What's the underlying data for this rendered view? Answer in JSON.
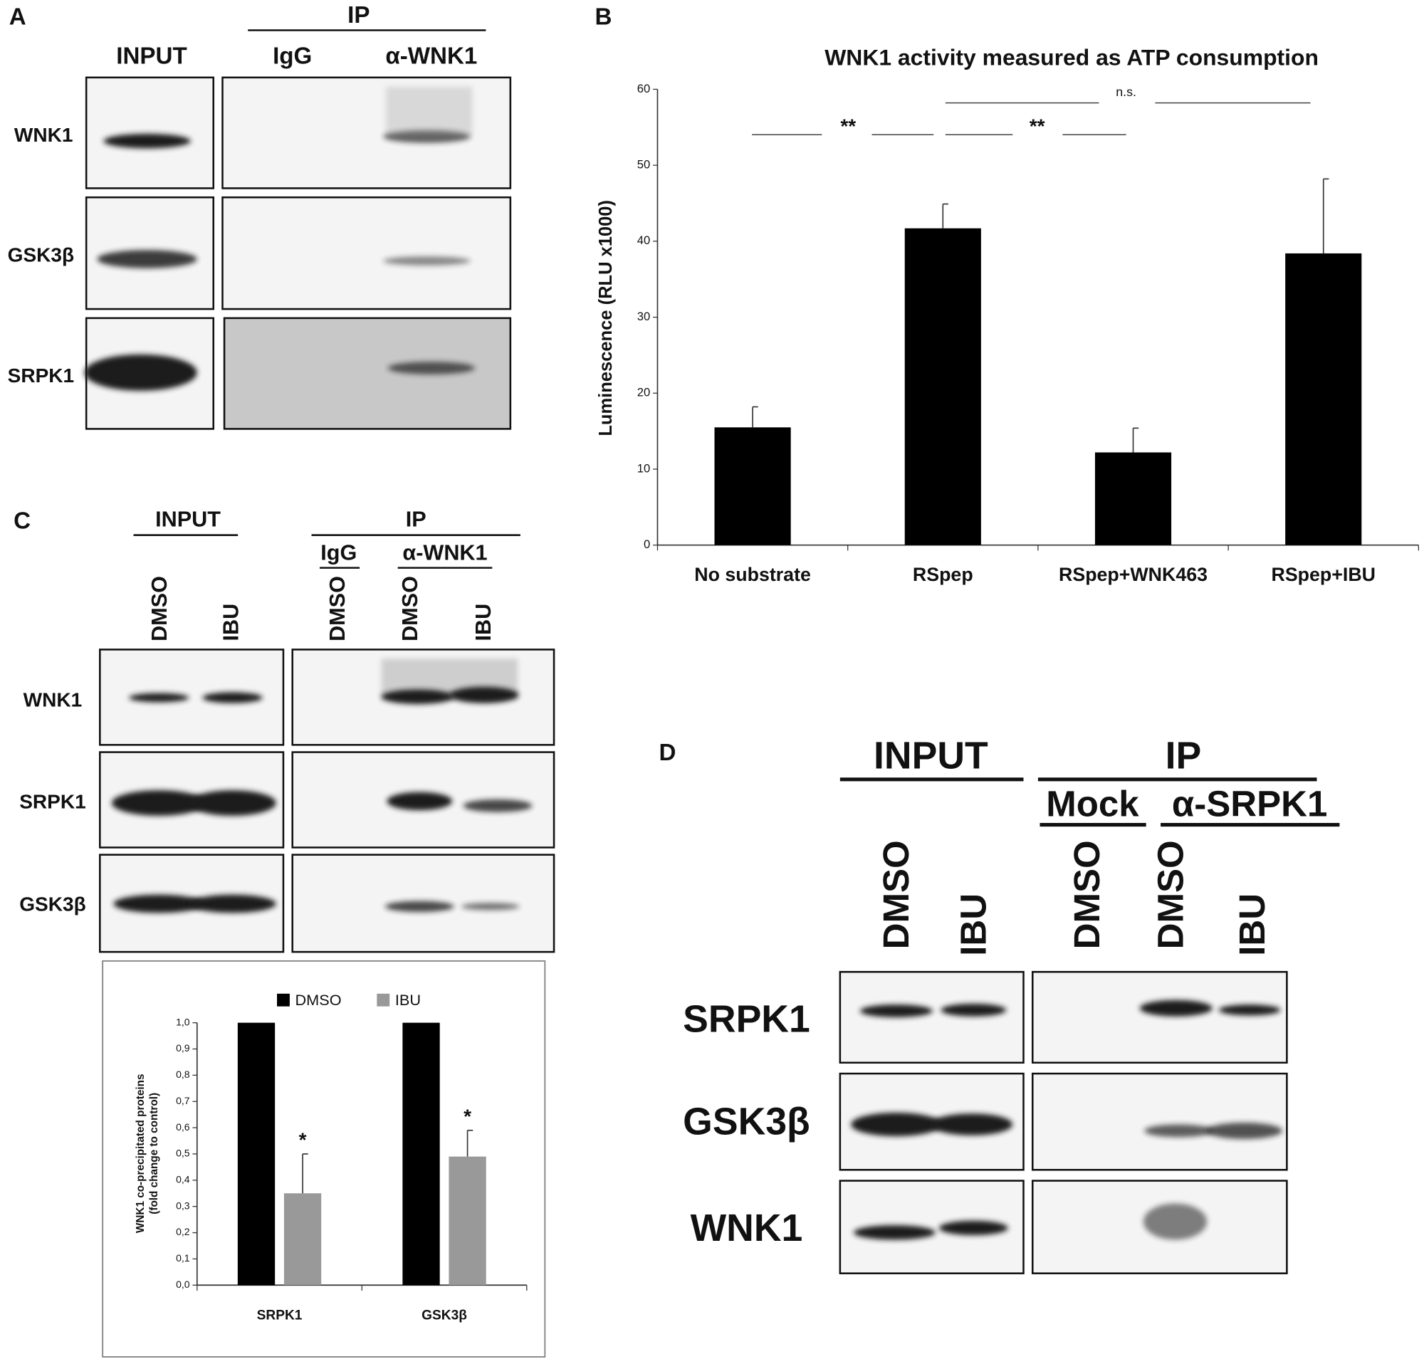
{
  "panel_a": {
    "label": "A",
    "ip": "IP",
    "input": "INPUT",
    "lanes": [
      "IgG",
      "α-WNK1"
    ],
    "rows": [
      "WNK1",
      "GSK3β",
      "SRPK1"
    ]
  },
  "chart_data": [
    {
      "type": "bar",
      "label": "B",
      "title": "WNK1 activity measured as ATP consumption",
      "y_label": "Luminescence (RLU x1000)",
      "categories": [
        "No substrate",
        "RSpep",
        "RSpep+WNK463",
        "RSpep+IBU"
      ],
      "values": [
        15.5,
        41.7,
        12.2,
        38.4
      ],
      "errors": [
        2.7,
        3.2,
        3.2,
        9.8
      ],
      "color": "#000000",
      "ylim": [
        0,
        60
      ],
      "yticks": [
        0,
        10,
        20,
        30,
        40,
        50,
        60
      ],
      "annotations": [
        "**",
        "**",
        "n.s."
      ]
    },
    {
      "type": "grouped_bar",
      "y_label": [
        "WNK1 co-precipitated proteins",
        "(fold change to control)"
      ],
      "categories": [
        "SRPK1",
        "GSK3β"
      ],
      "series": [
        {
          "name": "DMSO",
          "color": "#000000",
          "values": [
            1.0,
            1.0
          ]
        },
        {
          "name": "IBU",
          "color": "#999999",
          "values": [
            0.35,
            0.49
          ],
          "errors": [
            0.15,
            0.1
          ]
        }
      ],
      "ylim": [
        0,
        1.0
      ],
      "yticks": [
        {
          "value": 0,
          "label": "0,0"
        },
        {
          "value": 0.1,
          "label": "0,1"
        },
        {
          "value": 0.2,
          "label": "0,2"
        },
        {
          "value": 0.3,
          "label": "0,3"
        },
        {
          "value": 0.4,
          "label": "0,4"
        },
        {
          "value": 0.5,
          "label": "0,5"
        },
        {
          "value": 0.6,
          "label": "0,6"
        },
        {
          "value": 0.7,
          "label": "0,7"
        },
        {
          "value": 0.8,
          "label": "0,8"
        },
        {
          "value": 0.9,
          "label": "0,9"
        },
        {
          "value": 1.0,
          "label": "1,0"
        }
      ],
      "legend": "top",
      "annotations": [
        "*",
        "*"
      ]
    }
  ],
  "panel_c": {
    "label": "C",
    "input": "INPUT",
    "ip": "IP",
    "groups": [
      "IgG",
      "α-WNK1"
    ],
    "lanes": [
      "DMSO",
      "IBU",
      "DMSO",
      "DMSO",
      "IBU"
    ],
    "rows": [
      "WNK1",
      "SRPK1",
      "GSK3β"
    ]
  },
  "panel_d": {
    "label": "D",
    "input": "INPUT",
    "ip": "IP",
    "groups": [
      "Mock",
      "α-SRPK1"
    ],
    "lanes": [
      "DMSO",
      "IBU",
      "DMSO",
      "DMSO",
      "IBU"
    ],
    "rows": [
      "SRPK1",
      "GSK3β",
      "WNK1"
    ]
  }
}
